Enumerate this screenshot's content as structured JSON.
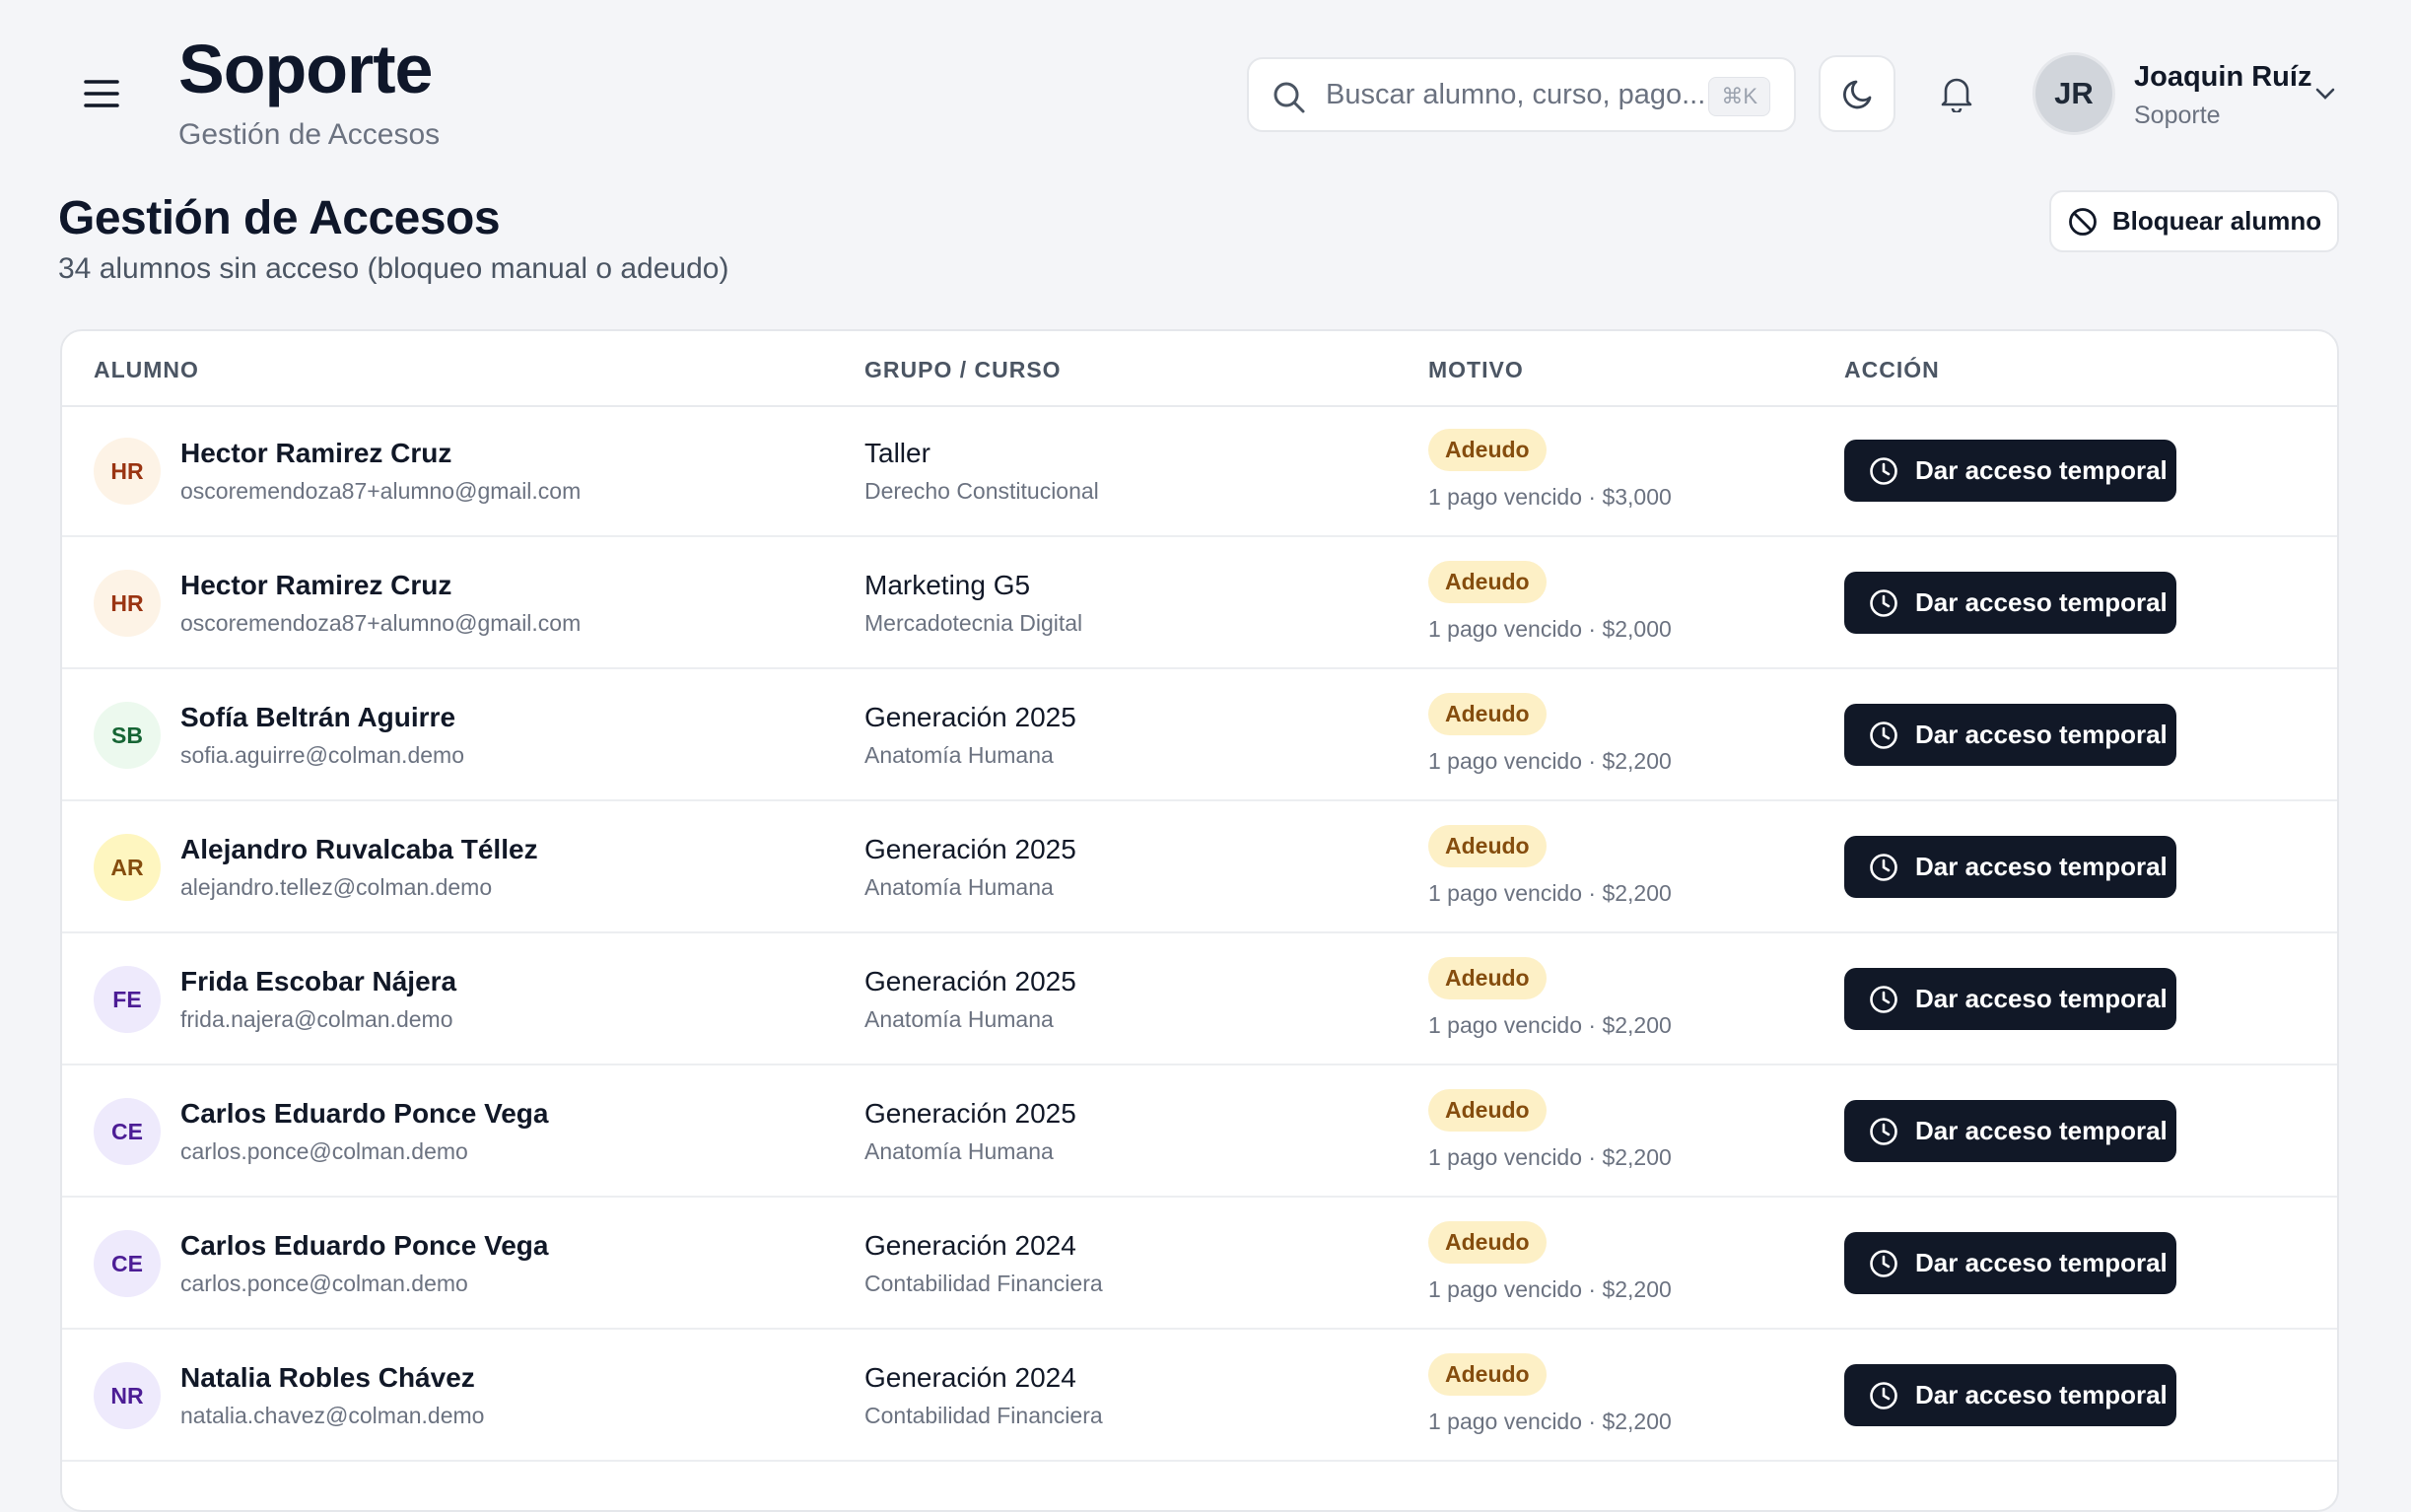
{
  "header": {
    "title": "Soporte",
    "subtitle": "Gestión de Accesos"
  },
  "search": {
    "placeholder": "Buscar alumno, curso, pago...",
    "shortcut": "⌘K"
  },
  "user": {
    "initials": "JR",
    "name": "Joaquin Ruíz",
    "role": "Soporte"
  },
  "page": {
    "title": "Gestión de Accesos",
    "subtitle": "34 alumnos sin acceso (bloqueo manual o adeudo)",
    "block_button": "Bloquear alumno"
  },
  "table": {
    "columns": [
      "ALUMNO",
      "GRUPO / CURSO",
      "MOTIVO",
      "ACCIÓN"
    ],
    "rows": [
      {
        "initials": "HR",
        "name": "Hector Ramirez Cruz",
        "email": "oscoremendoza87+alumno@gmail.com",
        "group": "Taller",
        "course": "Derecho Constitucional",
        "reason": "Adeudo",
        "detail": "1 pago vencido · $3,000",
        "action": "Dar acceso temporal"
      },
      {
        "initials": "HR",
        "name": "Hector Ramirez Cruz",
        "email": "oscoremendoza87+alumno@gmail.com",
        "group": "Marketing G5",
        "course": "Mercadotecnia Digital",
        "reason": "Adeudo",
        "detail": "1 pago vencido · $2,000",
        "action": "Dar acceso temporal"
      },
      {
        "initials": "SB",
        "name": "Sofía Beltrán Aguirre",
        "email": "sofia.aguirre@colman.demo",
        "group": "Generación 2025",
        "course": "Anatomía Humana",
        "reason": "Adeudo",
        "detail": "1 pago vencido · $2,200",
        "action": "Dar acceso temporal"
      },
      {
        "initials": "AR",
        "name": "Alejandro Ruvalcaba Téllez",
        "email": "alejandro.tellez@colman.demo",
        "group": "Generación 2025",
        "course": "Anatomía Humana",
        "reason": "Adeudo",
        "detail": "1 pago vencido · $2,200",
        "action": "Dar acceso temporal"
      },
      {
        "initials": "FE",
        "name": "Frida Escobar Nájera",
        "email": "frida.najera@colman.demo",
        "group": "Generación 2025",
        "course": "Anatomía Humana",
        "reason": "Adeudo",
        "detail": "1 pago vencido · $2,200",
        "action": "Dar acceso temporal"
      },
      {
        "initials": "CE",
        "name": "Carlos Eduardo Ponce Vega",
        "email": "carlos.ponce@colman.demo",
        "group": "Generación 2025",
        "course": "Anatomía Humana",
        "reason": "Adeudo",
        "detail": "1 pago vencido · $2,200",
        "action": "Dar acceso temporal"
      },
      {
        "initials": "CE",
        "name": "Carlos Eduardo Ponce Vega",
        "email": "carlos.ponce@colman.demo",
        "group": "Generación 2024",
        "course": "Contabilidad Financiera",
        "reason": "Adeudo",
        "detail": "1 pago vencido · $2,200",
        "action": "Dar acceso temporal"
      },
      {
        "initials": "NR",
        "name": "Natalia Robles Chávez",
        "email": "natalia.chavez@colman.demo",
        "group": "Generación 2024",
        "course": "Contabilidad Financiera",
        "reason": "Adeudo",
        "detail": "1 pago vencido · $2,200",
        "action": "Dar acceso temporal"
      }
    ]
  }
}
